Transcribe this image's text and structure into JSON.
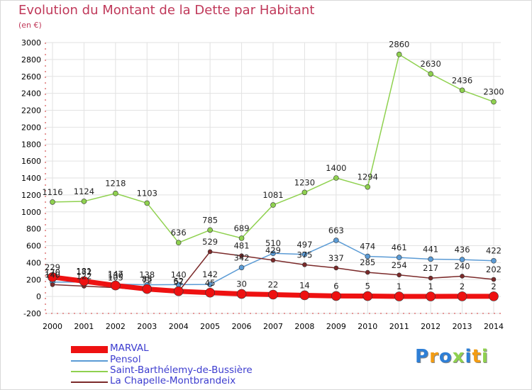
{
  "title": "Evolution du Montant de la Dette par Habitant",
  "subtitle": "(en €)",
  "logo": "Proxiti",
  "chart_data": {
    "type": "line",
    "x": [
      "2000",
      "2001",
      "2002",
      "2003",
      "2004",
      "2005",
      "2006",
      "2007",
      "2008",
      "2009",
      "2010",
      "2011",
      "2012",
      "2013",
      "2014"
    ],
    "ylim": [
      -200,
      3000
    ],
    "yticks": [
      -200,
      0,
      200,
      400,
      600,
      800,
      1000,
      1200,
      1400,
      1600,
      1800,
      2000,
      2200,
      2400,
      2600,
      2800,
      3000
    ],
    "grid": true,
    "legend": "bottom-left",
    "series": [
      {
        "name": "MARVAL",
        "color": "#ee1111",
        "values": [
          229,
          181,
          130,
          88,
          62,
          45,
          30,
          22,
          14,
          6,
          5,
          1,
          1,
          2,
          2
        ]
      },
      {
        "name": "Pensol",
        "color": "#5b9bd5",
        "values": [
          170,
          172,
          147,
          138,
          140,
          142,
          342,
          510,
          497,
          663,
          474,
          461,
          441,
          436,
          422
        ]
      },
      {
        "name": "Saint-Barthélemy-de-Bussière",
        "color": "#8fd14f",
        "values": [
          1116,
          1124,
          1218,
          1103,
          636,
          785,
          689,
          1081,
          1230,
          1400,
          1294,
          2860,
          2630,
          2436,
          2300
        ]
      },
      {
        "name": "La Chapelle-Montbrandeix",
        "color": "#7b2a2a",
        "values": [
          140,
          122,
          105,
          72,
          57,
          529,
          481,
          429,
          375,
          337,
          285,
          254,
          217,
          240,
          202
        ]
      }
    ]
  }
}
